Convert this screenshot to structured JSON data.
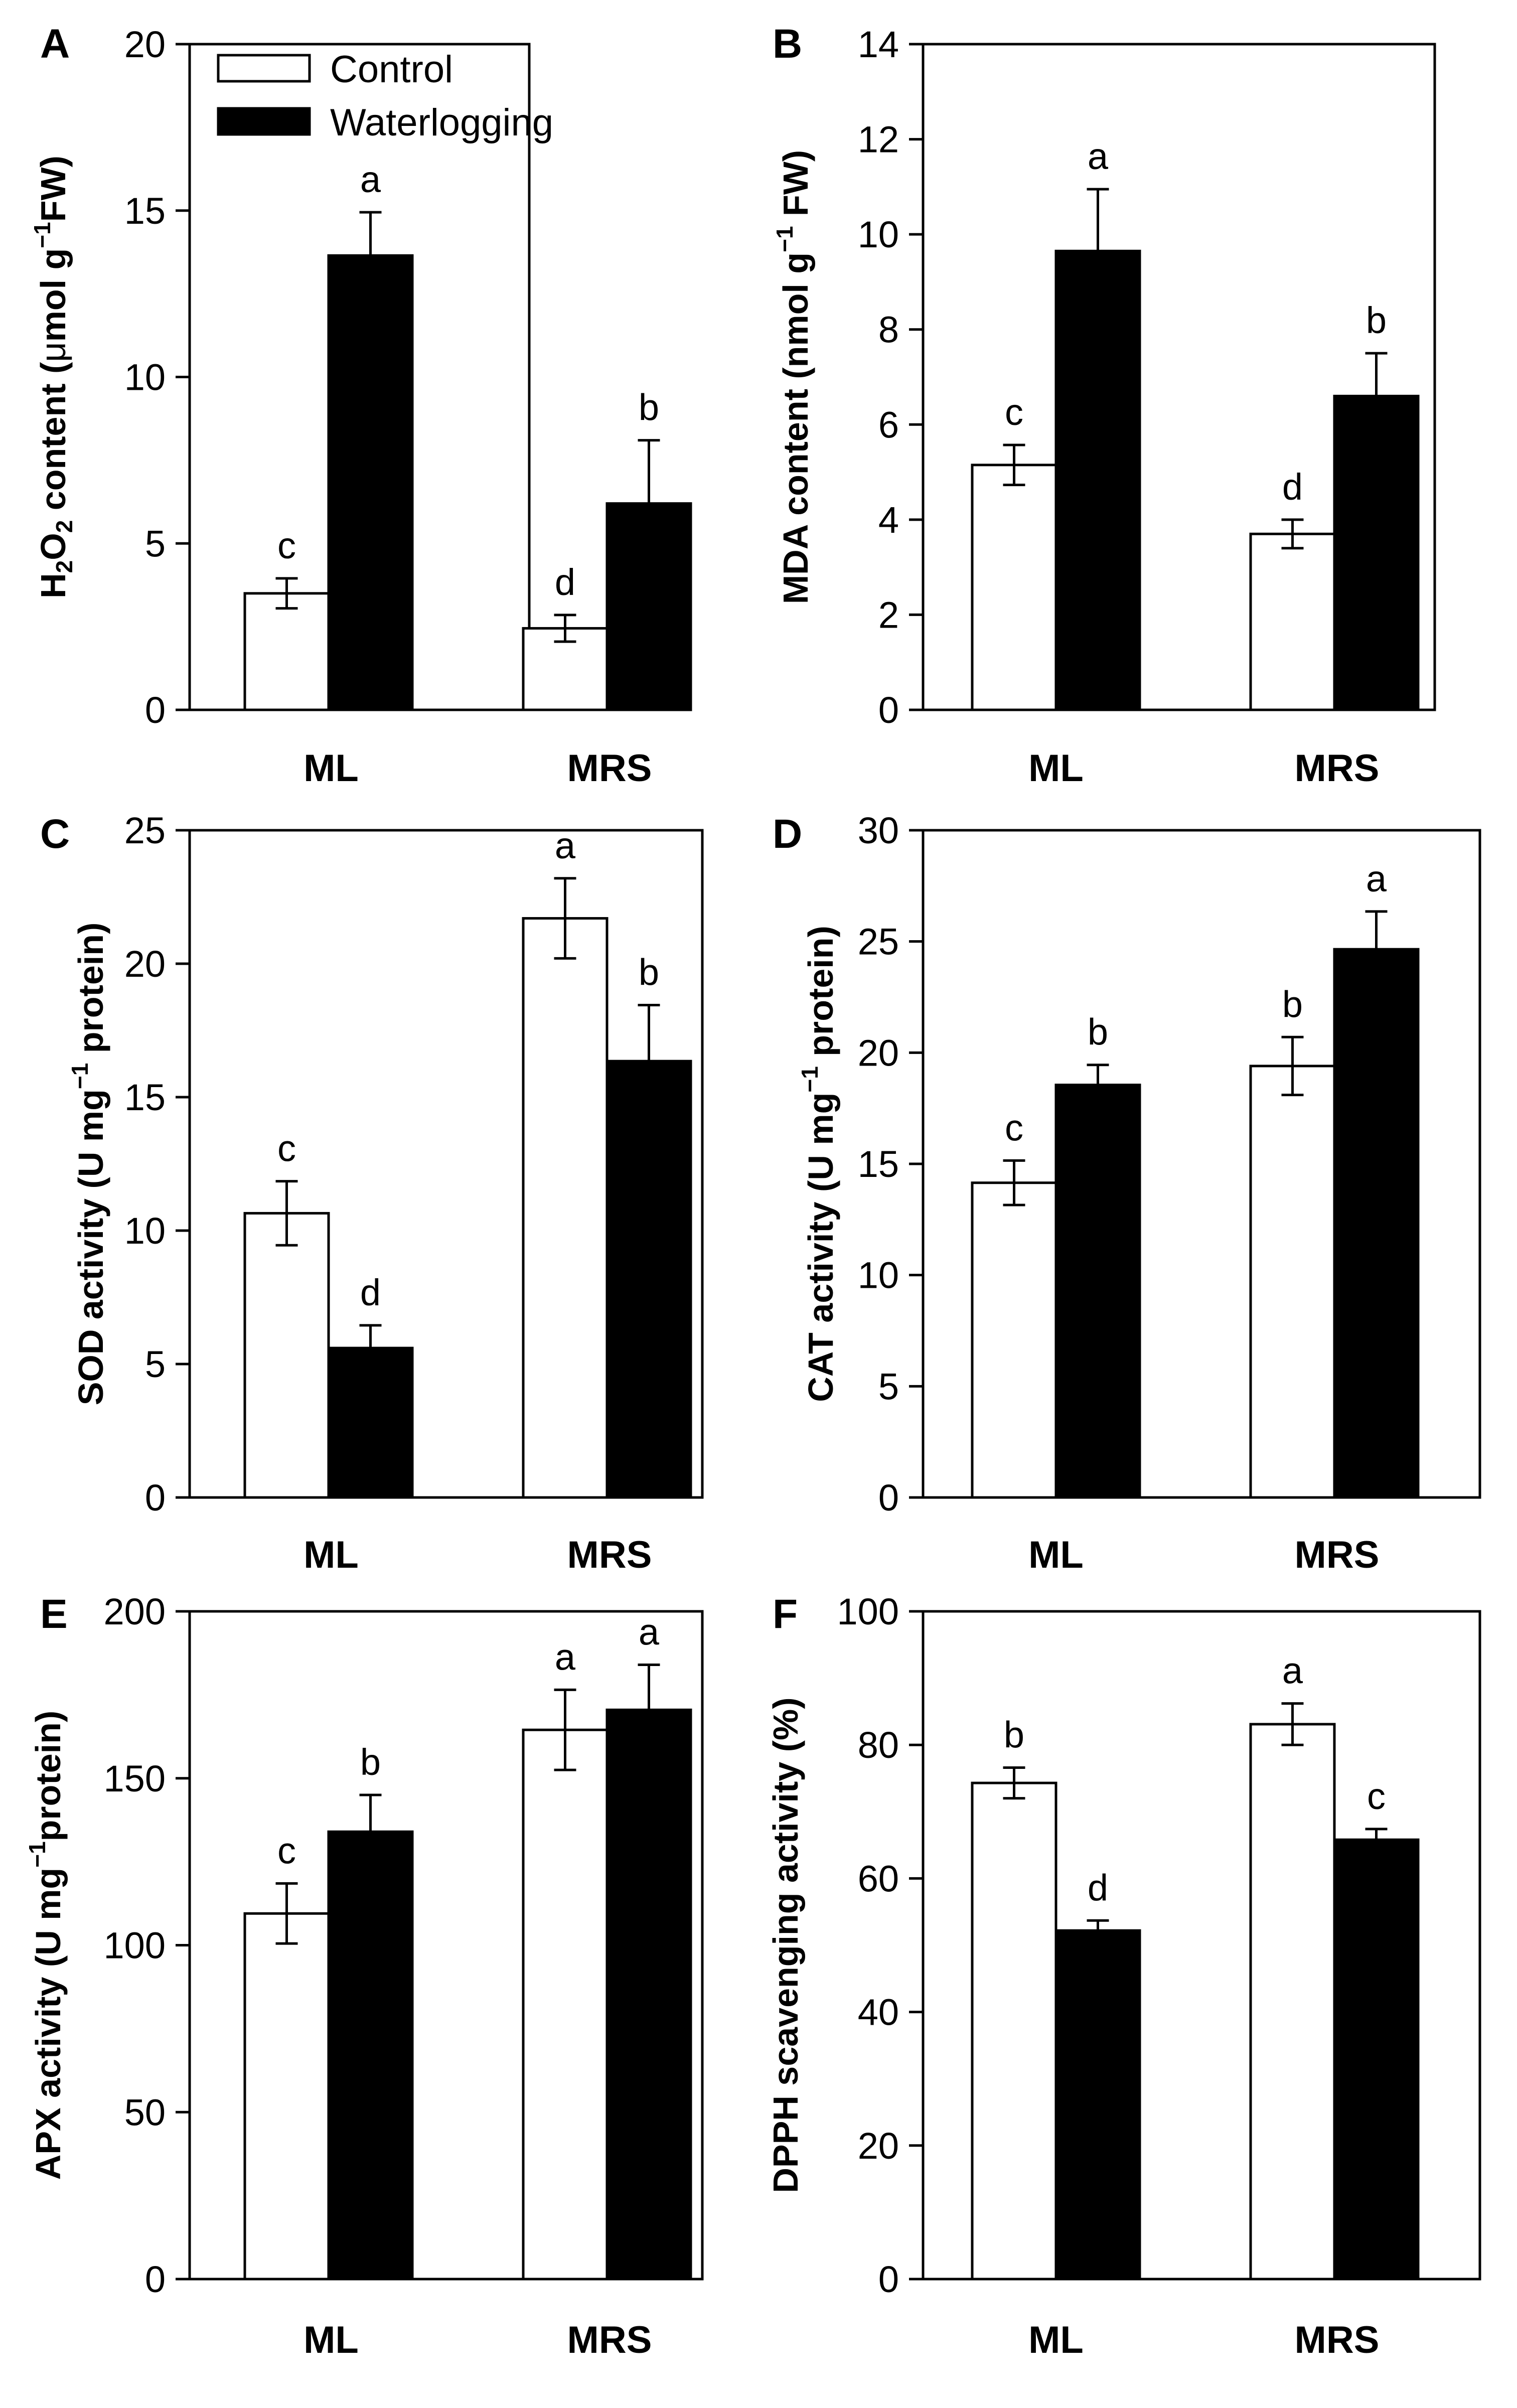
{
  "legend": {
    "items": [
      {
        "label": "Control",
        "fill": "#ffffff"
      },
      {
        "label": "Waterlogging",
        "fill": "#000000"
      }
    ]
  },
  "chart_data": [
    {
      "type": "bar",
      "panel": "A",
      "ylabel_parts": [
        {
          "t": "H",
          "s": ""
        },
        {
          "t": "2",
          "s": "sub"
        },
        {
          "t": "O",
          "s": ""
        },
        {
          "t": "2",
          "s": "sub"
        },
        {
          "t": "  content (",
          "s": ""
        },
        {
          "t": "μ",
          "s": "mu"
        },
        {
          "t": "mol g",
          "s": ""
        },
        {
          "t": "−1",
          "s": "sup"
        },
        {
          "t": "FW)",
          "s": ""
        }
      ],
      "categories": [
        "ML",
        "MRS"
      ],
      "ylim": [
        0,
        20
      ],
      "yticks": [
        0,
        5,
        10,
        15,
        20
      ],
      "series": [
        {
          "name": "Control",
          "values": [
            3.5,
            2.45
          ],
          "errors": [
            0.45,
            0.4
          ],
          "letters": [
            "c",
            "d"
          ]
        },
        {
          "name": "Waterlogging",
          "values": [
            13.65,
            6.2
          ],
          "errors": [
            1.3,
            1.9
          ],
          "letters": [
            "a",
            "b"
          ]
        }
      ]
    },
    {
      "type": "bar",
      "panel": "B",
      "ylabel_parts": [
        {
          "t": "MDA  content (nmol g",
          "s": ""
        },
        {
          "t": "−1",
          "s": "sup"
        },
        {
          "t": " FW)",
          "s": ""
        }
      ],
      "categories": [
        "ML",
        "MRS"
      ],
      "ylim": [
        0,
        14
      ],
      "yticks": [
        0,
        2,
        4,
        6,
        8,
        10,
        12,
        14
      ],
      "series": [
        {
          "name": "Control",
          "values": [
            5.15,
            3.7
          ],
          "errors": [
            0.42,
            0.3
          ],
          "letters": [
            "c",
            "d"
          ]
        },
        {
          "name": "Waterlogging",
          "values": [
            9.65,
            6.6
          ],
          "errors": [
            1.3,
            0.9
          ],
          "letters": [
            "a",
            "b"
          ]
        }
      ]
    },
    {
      "type": "bar",
      "panel": "C",
      "ylabel_parts": [
        {
          "t": "SOD activity (U mg",
          "s": ""
        },
        {
          "t": "−1",
          "s": "sup"
        },
        {
          "t": " protein)",
          "s": ""
        }
      ],
      "categories": [
        "ML",
        "MRS"
      ],
      "ylim": [
        0,
        25
      ],
      "yticks": [
        0,
        5,
        10,
        15,
        20,
        25
      ],
      "series": [
        {
          "name": "Control",
          "values": [
            10.65,
            21.7
          ],
          "errors": [
            1.2,
            1.5
          ],
          "letters": [
            "c",
            "a"
          ]
        },
        {
          "name": "Waterlogging",
          "values": [
            5.6,
            16.35
          ],
          "errors": [
            0.85,
            2.1
          ],
          "letters": [
            "d",
            "b"
          ]
        }
      ]
    },
    {
      "type": "bar",
      "panel": "D",
      "ylabel_parts": [
        {
          "t": "CAT activity (U mg",
          "s": ""
        },
        {
          "t": "−1",
          "s": "sup"
        },
        {
          "t": " protein)",
          "s": ""
        }
      ],
      "categories": [
        "ML",
        "MRS"
      ],
      "ylim": [
        0,
        30
      ],
      "yticks": [
        0,
        5,
        10,
        15,
        20,
        25,
        30
      ],
      "series": [
        {
          "name": "Control",
          "values": [
            14.15,
            19.4
          ],
          "errors": [
            1.0,
            1.3
          ],
          "letters": [
            "c",
            "b"
          ]
        },
        {
          "name": "Waterlogging",
          "values": [
            18.55,
            24.65
          ],
          "errors": [
            0.9,
            1.7
          ],
          "letters": [
            "b",
            "a"
          ]
        }
      ]
    },
    {
      "type": "bar",
      "panel": "E",
      "ylabel_parts": [
        {
          "t": "APX activity (U mg",
          "s": ""
        },
        {
          "t": "−1",
          "s": "sup"
        },
        {
          "t": "protein)",
          "s": ""
        }
      ],
      "categories": [
        "ML",
        "MRS"
      ],
      "ylim": [
        0,
        200
      ],
      "yticks": [
        0,
        50,
        100,
        150,
        200
      ],
      "series": [
        {
          "name": "Control",
          "values": [
            109.5,
            164.5
          ],
          "errors": [
            9,
            12
          ],
          "letters": [
            "c",
            "a"
          ]
        },
        {
          "name": "Waterlogging",
          "values": [
            134,
            170.5
          ],
          "errors": [
            11,
            13.5
          ],
          "letters": [
            "b",
            "a"
          ]
        }
      ]
    },
    {
      "type": "bar",
      "panel": "F",
      "ylabel_parts": [
        {
          "t": "DPPH scavenging activity (%)",
          "s": ""
        }
      ],
      "categories": [
        "ML",
        "MRS"
      ],
      "ylim": [
        0,
        100
      ],
      "yticks": [
        0,
        20,
        40,
        60,
        80,
        100
      ],
      "series": [
        {
          "name": "Control",
          "values": [
            74.3,
            83.1
          ],
          "errors": [
            2.3,
            3.1
          ],
          "letters": [
            "b",
            "a"
          ]
        },
        {
          "name": "Waterlogging",
          "values": [
            52.2,
            65.8
          ],
          "errors": [
            1.5,
            1.6
          ],
          "letters": [
            "d",
            "c"
          ]
        }
      ]
    }
  ]
}
